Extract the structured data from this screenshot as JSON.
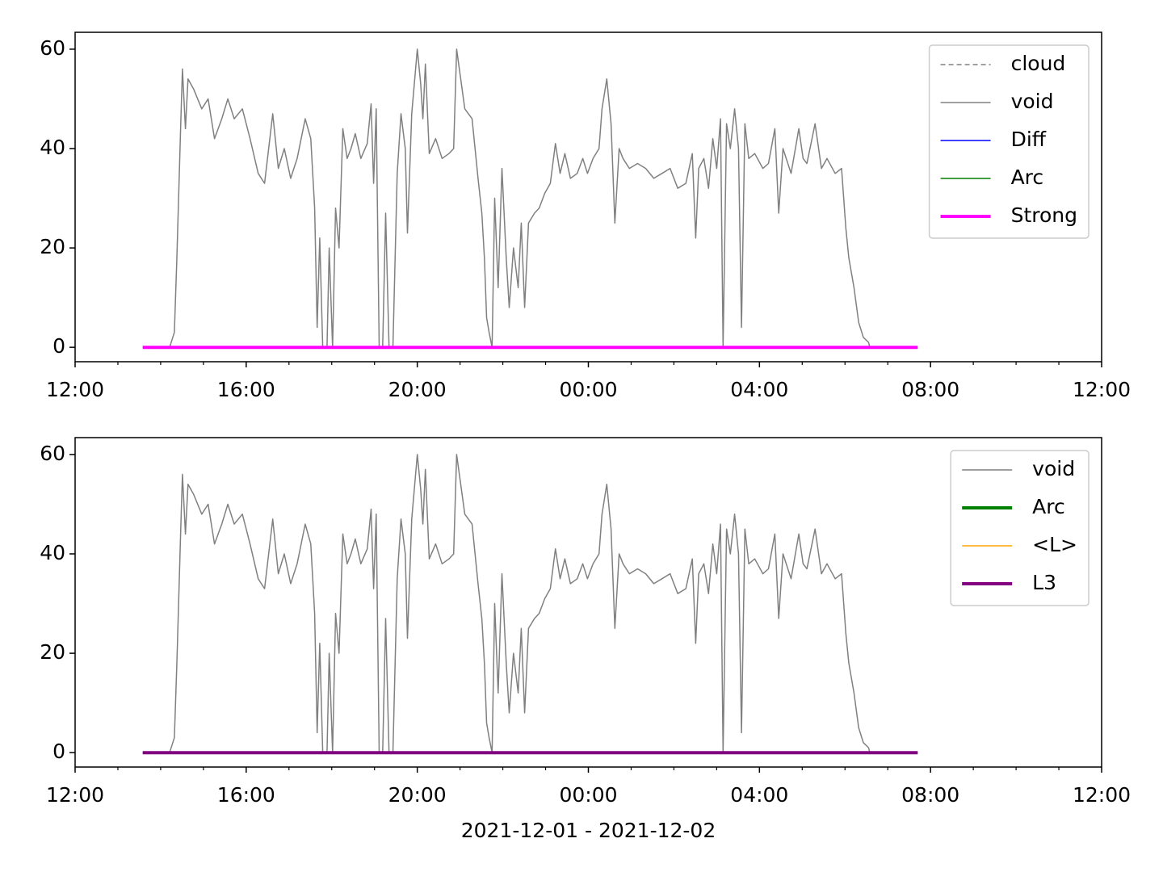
{
  "chart_data": [
    {
      "type": "line",
      "xlim": [
        0,
        24
      ],
      "ylim": [
        -2.9,
        63.4
      ],
      "xticks": [
        {
          "value": 0,
          "label": "12:00"
        },
        {
          "value": 4,
          "label": "16:00"
        },
        {
          "value": 8,
          "label": "20:00"
        },
        {
          "value": 12,
          "label": "00:00"
        },
        {
          "value": 16,
          "label": "04:00"
        },
        {
          "value": 20,
          "label": "08:00"
        },
        {
          "value": 24,
          "label": "12:00"
        }
      ],
      "xticks_minor": [
        1,
        2,
        3,
        5,
        6,
        7,
        9,
        10,
        11,
        13,
        14,
        15,
        17,
        18,
        19,
        21,
        22,
        23
      ],
      "yticks": [
        0,
        20,
        40,
        60
      ],
      "legend": "upper-right",
      "series": [
        {
          "name": "cloud",
          "color": "#808080",
          "linestyle": "dashed",
          "linewidth": 1.5,
          "x": [],
          "values": []
        },
        {
          "name": "void",
          "color": "#808080",
          "linestyle": "solid",
          "linewidth": 1.5,
          "x": [
            1.58,
            2.21,
            2.32,
            2.38,
            2.47,
            2.51,
            2.58,
            2.64,
            2.77,
            2.96,
            3.11,
            3.26,
            3.43,
            3.57,
            3.72,
            3.91,
            4.09,
            4.28,
            4.43,
            4.62,
            4.75,
            4.89,
            5.04,
            5.19,
            5.38,
            5.51,
            5.6,
            5.66,
            5.72,
            5.79,
            5.89,
            5.94,
            6.02,
            6.09,
            6.17,
            6.26,
            6.36,
            6.45,
            6.55,
            6.68,
            6.83,
            6.92,
            6.98,
            7.04,
            7.11,
            7.19,
            7.26,
            7.34,
            7.43,
            7.53,
            7.62,
            7.72,
            7.77,
            7.87,
            8.0,
            8.08,
            8.13,
            8.19,
            8.28,
            8.43,
            8.58,
            8.74,
            8.85,
            8.92,
            9.0,
            9.11,
            9.28,
            9.42,
            9.51,
            9.57,
            9.62,
            9.68,
            9.75,
            9.81,
            9.89,
            9.98,
            10.08,
            10.15,
            10.25,
            10.36,
            10.43,
            10.51,
            10.6,
            10.74,
            10.85,
            10.98,
            11.11,
            11.23,
            11.34,
            11.45,
            11.58,
            11.74,
            11.87,
            11.98,
            12.11,
            12.25,
            12.32,
            12.43,
            12.53,
            12.62,
            12.72,
            12.81,
            12.96,
            13.15,
            13.34,
            13.53,
            13.72,
            13.91,
            14.09,
            14.28,
            14.43,
            14.51,
            14.58,
            14.7,
            14.81,
            14.91,
            15.0,
            15.09,
            15.15,
            15.23,
            15.32,
            15.42,
            15.51,
            15.58,
            15.66,
            15.75,
            15.89,
            16.08,
            16.21,
            16.36,
            16.45,
            16.55,
            16.74,
            16.92,
            17.02,
            17.11,
            17.3,
            17.45,
            17.58,
            17.77,
            17.92,
            18.02,
            18.09,
            18.21,
            18.32,
            18.43,
            18.55,
            18.58,
            19.7
          ],
          "values": [
            0,
            0,
            3,
            18,
            45,
            56,
            44,
            54,
            52,
            48,
            50,
            42,
            46,
            50,
            46,
            48,
            42,
            35,
            33,
            47,
            36,
            40,
            34,
            38,
            46,
            42,
            28,
            4,
            22,
            0,
            0,
            20,
            0,
            28,
            20,
            44,
            38,
            40,
            43,
            38,
            41,
            49,
            33,
            48,
            0,
            0,
            27,
            0,
            0,
            35,
            47,
            40,
            23,
            47,
            60,
            53,
            46,
            57,
            39,
            42,
            38,
            39,
            40,
            60,
            55,
            48,
            46,
            34,
            27,
            18,
            6,
            3,
            0,
            30,
            12,
            36,
            18,
            8,
            20,
            12,
            25,
            8,
            25,
            27,
            28,
            31,
            33,
            41,
            35,
            39,
            34,
            35,
            38,
            35,
            38,
            40,
            48,
            54,
            45,
            25,
            40,
            38,
            36,
            37,
            36,
            34,
            35,
            36,
            32,
            33,
            39,
            22,
            36,
            38,
            32,
            42,
            36,
            46,
            0,
            45,
            40,
            48,
            40,
            4,
            45,
            38,
            39,
            36,
            37,
            44,
            27,
            40,
            35,
            44,
            38,
            37,
            45,
            36,
            38,
            35,
            36,
            24,
            18,
            12,
            5,
            2,
            1,
            0,
            0
          ]
        },
        {
          "name": "Diff",
          "color": "#0000ff",
          "linestyle": "solid",
          "linewidth": 1.5,
          "x": [],
          "values": []
        },
        {
          "name": "Arc",
          "color": "#008000",
          "linestyle": "solid",
          "linewidth": 1.5,
          "x": [],
          "values": []
        },
        {
          "name": "Strong",
          "color": "#ff00ff",
          "linestyle": "solid",
          "linewidth": 4,
          "x": [
            1.58,
            19.7
          ],
          "values": [
            0,
            0
          ]
        }
      ]
    },
    {
      "type": "line",
      "xlim": [
        0,
        24
      ],
      "ylim": [
        -2.9,
        63.4
      ],
      "xticks": [
        {
          "value": 0,
          "label": "12:00"
        },
        {
          "value": 4,
          "label": "16:00"
        },
        {
          "value": 8,
          "label": "20:00"
        },
        {
          "value": 12,
          "label": "00:00"
        },
        {
          "value": 16,
          "label": "04:00"
        },
        {
          "value": 20,
          "label": "08:00"
        },
        {
          "value": 24,
          "label": "12:00"
        }
      ],
      "xticks_minor": [
        1,
        2,
        3,
        5,
        6,
        7,
        9,
        10,
        11,
        13,
        14,
        15,
        17,
        18,
        19,
        21,
        22,
        23
      ],
      "yticks": [
        0,
        20,
        40,
        60
      ],
      "legend": "upper-right",
      "x_label": "2021-12-01 - 2021-12-02",
      "series": [
        {
          "name": "void",
          "color": "#808080",
          "linestyle": "solid",
          "linewidth": 1.5,
          "x": [
            1.58,
            2.21,
            2.32,
            2.38,
            2.47,
            2.51,
            2.58,
            2.64,
            2.77,
            2.96,
            3.11,
            3.26,
            3.43,
            3.57,
            3.72,
            3.91,
            4.09,
            4.28,
            4.43,
            4.62,
            4.75,
            4.89,
            5.04,
            5.19,
            5.38,
            5.51,
            5.6,
            5.66,
            5.72,
            5.79,
            5.89,
            5.94,
            6.02,
            6.09,
            6.17,
            6.26,
            6.36,
            6.45,
            6.55,
            6.68,
            6.83,
            6.92,
            6.98,
            7.04,
            7.11,
            7.19,
            7.26,
            7.34,
            7.43,
            7.53,
            7.62,
            7.72,
            7.77,
            7.87,
            8.0,
            8.08,
            8.13,
            8.19,
            8.28,
            8.43,
            8.58,
            8.74,
            8.85,
            8.92,
            9.0,
            9.11,
            9.28,
            9.42,
            9.51,
            9.57,
            9.62,
            9.68,
            9.75,
            9.81,
            9.89,
            9.98,
            10.08,
            10.15,
            10.25,
            10.36,
            10.43,
            10.51,
            10.6,
            10.74,
            10.85,
            10.98,
            11.11,
            11.23,
            11.34,
            11.45,
            11.58,
            11.74,
            11.87,
            11.98,
            12.11,
            12.25,
            12.32,
            12.43,
            12.53,
            12.62,
            12.72,
            12.81,
            12.96,
            13.15,
            13.34,
            13.53,
            13.72,
            13.91,
            14.09,
            14.28,
            14.43,
            14.51,
            14.58,
            14.7,
            14.81,
            14.91,
            15.0,
            15.09,
            15.15,
            15.23,
            15.32,
            15.42,
            15.51,
            15.58,
            15.66,
            15.75,
            15.89,
            16.08,
            16.21,
            16.36,
            16.45,
            16.55,
            16.74,
            16.92,
            17.02,
            17.11,
            17.3,
            17.45,
            17.58,
            17.77,
            17.92,
            18.02,
            18.09,
            18.21,
            18.32,
            18.43,
            18.55,
            18.58,
            19.7
          ],
          "values": [
            0,
            0,
            3,
            18,
            45,
            56,
            44,
            54,
            52,
            48,
            50,
            42,
            46,
            50,
            46,
            48,
            42,
            35,
            33,
            47,
            36,
            40,
            34,
            38,
            46,
            42,
            28,
            4,
            22,
            0,
            0,
            20,
            0,
            28,
            20,
            44,
            38,
            40,
            43,
            38,
            41,
            49,
            33,
            48,
            0,
            0,
            27,
            0,
            0,
            35,
            47,
            40,
            23,
            47,
            60,
            53,
            46,
            57,
            39,
            42,
            38,
            39,
            40,
            60,
            55,
            48,
            46,
            34,
            27,
            18,
            6,
            3,
            0,
            30,
            12,
            36,
            18,
            8,
            20,
            12,
            25,
            8,
            25,
            27,
            28,
            31,
            33,
            41,
            35,
            39,
            34,
            35,
            38,
            35,
            38,
            40,
            48,
            54,
            45,
            25,
            40,
            38,
            36,
            37,
            36,
            34,
            35,
            36,
            32,
            33,
            39,
            22,
            36,
            38,
            32,
            42,
            36,
            46,
            0,
            45,
            40,
            48,
            40,
            4,
            45,
            38,
            39,
            36,
            37,
            44,
            27,
            40,
            35,
            44,
            38,
            37,
            45,
            36,
            38,
            35,
            36,
            24,
            18,
            12,
            5,
            2,
            1,
            0,
            0
          ]
        },
        {
          "name": "Arc",
          "color": "#008000",
          "linestyle": "solid",
          "linewidth": 4,
          "x": [],
          "values": []
        },
        {
          "name": "<L>",
          "color": "#ffa500",
          "linestyle": "solid",
          "linewidth": 1.5,
          "x": [],
          "values": []
        },
        {
          "name": "L3",
          "color": "#800080",
          "linestyle": "solid",
          "linewidth": 4,
          "x": [
            1.58,
            19.7
          ],
          "values": [
            0,
            0
          ]
        }
      ]
    }
  ]
}
